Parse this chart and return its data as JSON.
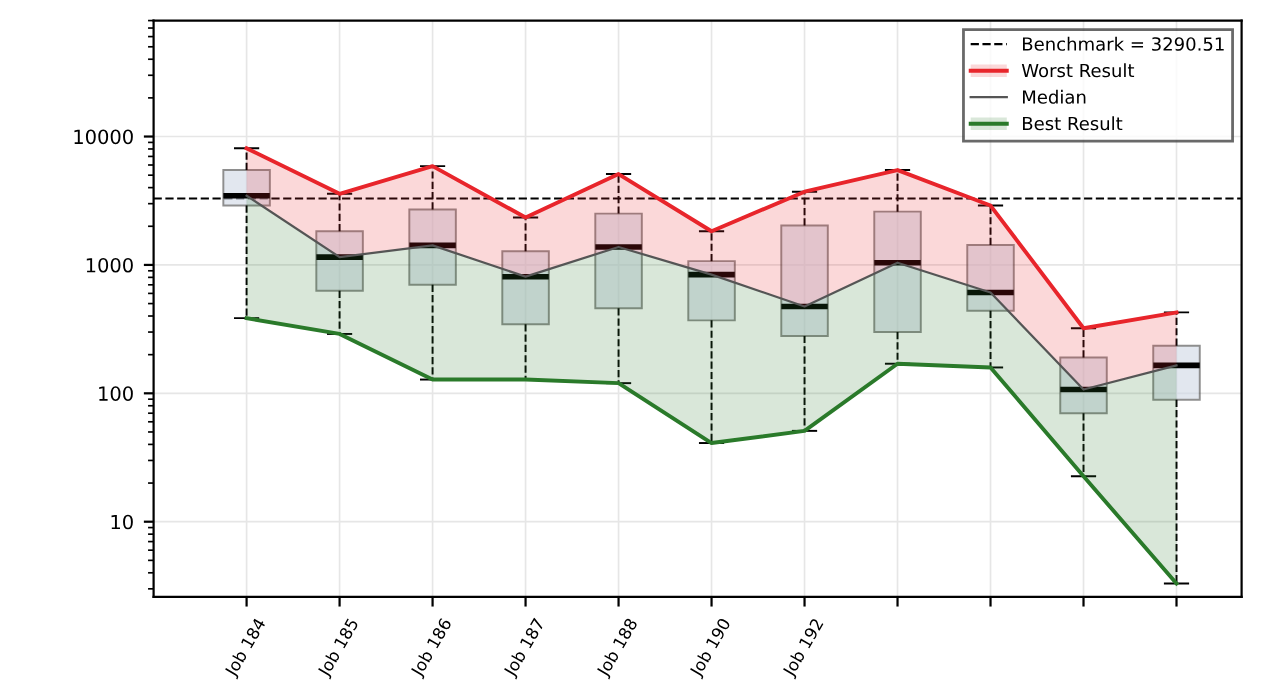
{
  "chart_data": {
    "type": "box",
    "categories": [
      "Job 184",
      "Job 185",
      "Job 186",
      "Job 187",
      "Job 188",
      "Job 190",
      "Job 192",
      null,
      null,
      null,
      null
    ],
    "boxes": [
      {
        "low": 385,
        "q1": 2900,
        "median": 3460,
        "q3": 5480,
        "high": 8100
      },
      {
        "low": 290,
        "q1": 630,
        "median": 1150,
        "q3": 1830,
        "high": 3580
      },
      {
        "low": 128,
        "q1": 700,
        "median": 1420,
        "q3": 2700,
        "high": 5880
      },
      {
        "low": 128,
        "q1": 345,
        "median": 810,
        "q3": 1280,
        "high": 2340
      },
      {
        "low": 120,
        "q1": 460,
        "median": 1380,
        "q3": 2510,
        "high": 5100
      },
      {
        "low": 41,
        "q1": 370,
        "median": 840,
        "q3": 1070,
        "high": 1830
      },
      {
        "low": 51,
        "q1": 280,
        "median": 475,
        "q3": 2030,
        "high": 3720
      },
      {
        "low": 170,
        "q1": 300,
        "median": 1040,
        "q3": 2600,
        "high": 5480
      },
      {
        "low": 159,
        "q1": 440,
        "median": 610,
        "q3": 1430,
        "high": 2900
      },
      {
        "low": 22.6,
        "q1": 70,
        "median": 107,
        "q3": 190,
        "high": 321
      },
      {
        "low": 3.3,
        "q1": 89,
        "median": 165,
        "q3": 235,
        "high": 427
      }
    ],
    "series": [
      {
        "name": "Worst Result",
        "type": "line",
        "color": "#e8252b",
        "values": [
          8100,
          3580,
          5880,
          2340,
          5100,
          1830,
          3720,
          5480,
          2900,
          321,
          427
        ],
        "lower": [
          3460,
          1150,
          1420,
          810,
          1380,
          840,
          475,
          1040,
          610,
          107,
          165
        ],
        "upper": [
          8100,
          3580,
          5880,
          2340,
          5100,
          1830,
          3720,
          5480,
          2900,
          321,
          427
        ]
      },
      {
        "name": "Median",
        "type": "line",
        "color": "#555555",
        "values": [
          3460,
          1150,
          1420,
          810,
          1380,
          840,
          475,
          1040,
          610,
          107,
          165
        ]
      },
      {
        "name": "Best Result",
        "type": "line",
        "color": "#2a7a2a",
        "values": [
          385,
          290,
          128,
          128,
          120,
          41,
          51,
          170,
          159,
          22.6,
          3.3
        ],
        "lower": [
          385,
          290,
          128,
          128,
          120,
          41,
          51,
          170,
          159,
          22.6,
          3.3
        ],
        "upper": [
          3460,
          1150,
          1420,
          810,
          1380,
          840,
          475,
          1040,
          610,
          107,
          165
        ]
      }
    ],
    "ref_lines": [
      {
        "axis": "y",
        "value": 3290.51,
        "label": "Benchmark = 3290.51",
        "color": "#000000",
        "line_style": "dashed"
      }
    ],
    "log": "y",
    "ylim": [
      2.6,
      80000
    ],
    "yticks": [
      10,
      100,
      1000,
      10000
    ],
    "grid": true,
    "legend": "top right"
  }
}
